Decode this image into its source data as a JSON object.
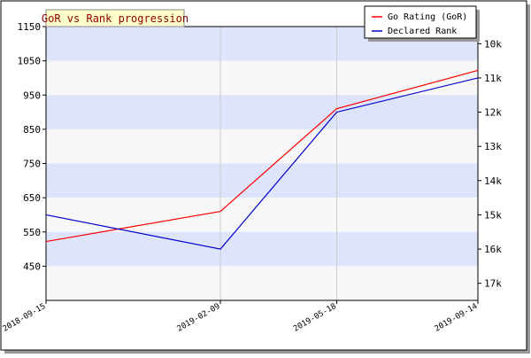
{
  "chart_data": {
    "type": "line",
    "title": "GoR vs Rank progression",
    "x": [
      "2018-09-15",
      "2019-02-09",
      "2019-05-18",
      "2019-09-14"
    ],
    "x_dates": [
      "2018-09-15",
      "2019-02-09",
      "2019-05-18",
      "2019-09-14"
    ],
    "xlabel": "",
    "ylabel": "",
    "ylim": [
      350,
      1150
    ],
    "y_ticks": [
      "1150",
      "1050",
      "950",
      "850",
      "750",
      "650",
      "550",
      "450"
    ],
    "y_tick_values": [
      1150,
      1050,
      950,
      850,
      750,
      650,
      550,
      450
    ],
    "y2_ticks": [
      "10k",
      "11k",
      "12k",
      "13k",
      "14k",
      "15k",
      "16k",
      "17k"
    ],
    "y2_tick_values": [
      1100,
      1000,
      900,
      800,
      700,
      600,
      500,
      400
    ],
    "series": [
      {
        "name": "Go Rating (GoR)",
        "color": "#ff0000",
        "values": [
          522,
          610,
          910,
          1022
        ]
      },
      {
        "name": "Declared Rank",
        "color": "#0000cc",
        "values": [
          600,
          500,
          900,
          1000
        ]
      }
    ],
    "grid": true,
    "legend": "top-right",
    "band_colors": [
      "#dde4fb",
      "#f7f7f7"
    ]
  }
}
